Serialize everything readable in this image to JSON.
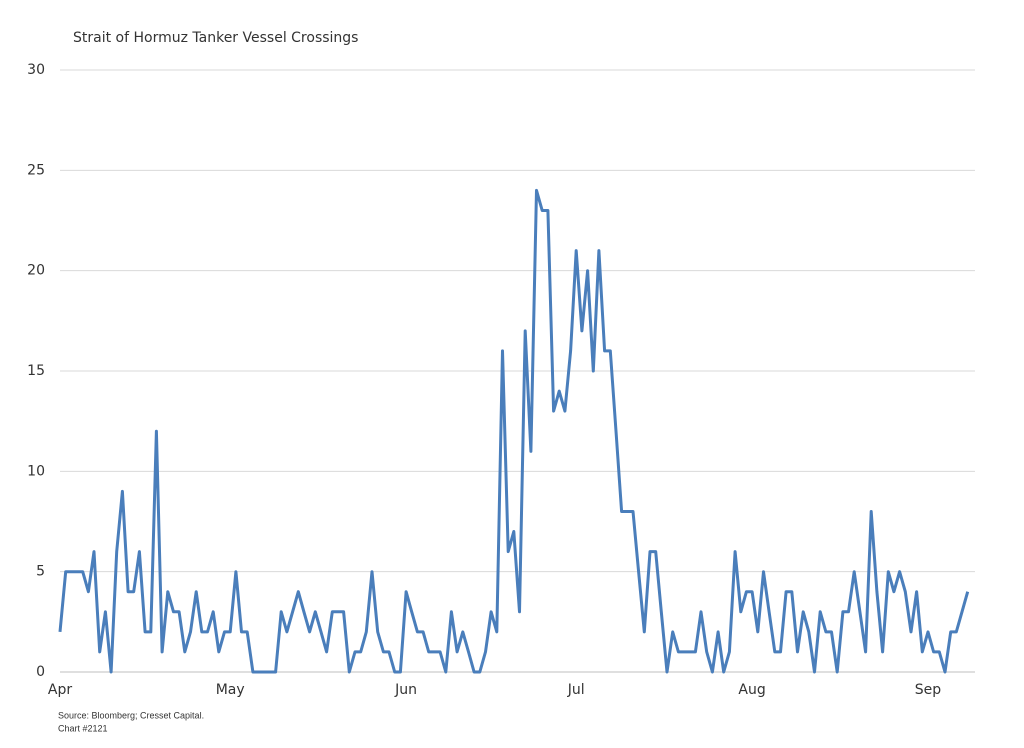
{
  "chart_data": {
    "type": "line",
    "title": "Strait of Hormuz Tanker Vessel Crossings",
    "source": "Source: Bloomberg; Cresset Capital.",
    "note": "Chart #2121",
    "categories": [
      "Apr",
      null,
      null,
      null,
      null,
      null,
      null,
      null,
      null,
      null,
      null,
      null,
      null,
      null,
      null,
      null,
      null,
      null,
      null,
      null,
      null,
      null,
      null,
      null,
      null,
      null,
      null,
      null,
      null,
      null,
      "May",
      null,
      null,
      null,
      null,
      null,
      null,
      null,
      null,
      null,
      null,
      null,
      null,
      null,
      null,
      null,
      null,
      null,
      null,
      null,
      null,
      null,
      null,
      null,
      null,
      null,
      null,
      null,
      null,
      null,
      null,
      "Jun",
      null,
      null,
      null,
      null,
      null,
      null,
      null,
      null,
      null,
      null,
      null,
      null,
      null,
      null,
      null,
      null,
      null,
      null,
      null,
      null,
      null,
      null,
      null,
      null,
      null,
      null,
      null,
      null,
      null,
      "Jul",
      null,
      null,
      null,
      null,
      null,
      null,
      null,
      null,
      null,
      null,
      null,
      null,
      null,
      null,
      null,
      null,
      null,
      null,
      null,
      null,
      null,
      null,
      null,
      null,
      null,
      null,
      null,
      null,
      null,
      null,
      "Aug",
      null,
      null,
      null,
      null,
      null,
      null,
      null,
      null,
      null,
      null,
      null,
      null,
      null,
      null,
      null,
      null,
      null,
      null,
      null,
      null,
      null,
      null,
      null,
      null,
      null,
      null,
      null,
      null,
      null,
      null,
      "Sep",
      null,
      null,
      null,
      null,
      null,
      null,
      null
    ],
    "series": [
      {
        "color": "#4a7ebb",
        "values": [
          2,
          5,
          5,
          5,
          5,
          4,
          6,
          1,
          3,
          0,
          6,
          9,
          4,
          4,
          6,
          2,
          2,
          12,
          1,
          4,
          3,
          3,
          1,
          2,
          4,
          2,
          2,
          3,
          1,
          2,
          2,
          5,
          2,
          2,
          0,
          0,
          0,
          0,
          0,
          3,
          2,
          3,
          4,
          3,
          2,
          3,
          2,
          1,
          3,
          3,
          3,
          0,
          1,
          1,
          2,
          5,
          2,
          1,
          1,
          0,
          0,
          4,
          3,
          2,
          2,
          1,
          1,
          1,
          0,
          3,
          1,
          2,
          1,
          0,
          0,
          1,
          3,
          2,
          16,
          6,
          7,
          3,
          17,
          11,
          24,
          23,
          23,
          13,
          14,
          13,
          16,
          21,
          17,
          20,
          15,
          21,
          16,
          16,
          12,
          8,
          8,
          8,
          5,
          2,
          6,
          6,
          3,
          0,
          2,
          1,
          1,
          1,
          1,
          3,
          1,
          0,
          2,
          0,
          1,
          6,
          3,
          4,
          4,
          2,
          5,
          3,
          1,
          1,
          4,
          4,
          1,
          3,
          2,
          0,
          3,
          2,
          2,
          0,
          3,
          3,
          5,
          3,
          1,
          8,
          4,
          1,
          5,
          4,
          5,
          4,
          2,
          4,
          1,
          2,
          1,
          1,
          0,
          2,
          2,
          3,
          4
        ]
      }
    ],
    "ylim": [
      0,
      30
    ],
    "yticks": [
      0,
      5,
      10,
      15,
      20,
      25,
      30
    ],
    "grid": true
  }
}
